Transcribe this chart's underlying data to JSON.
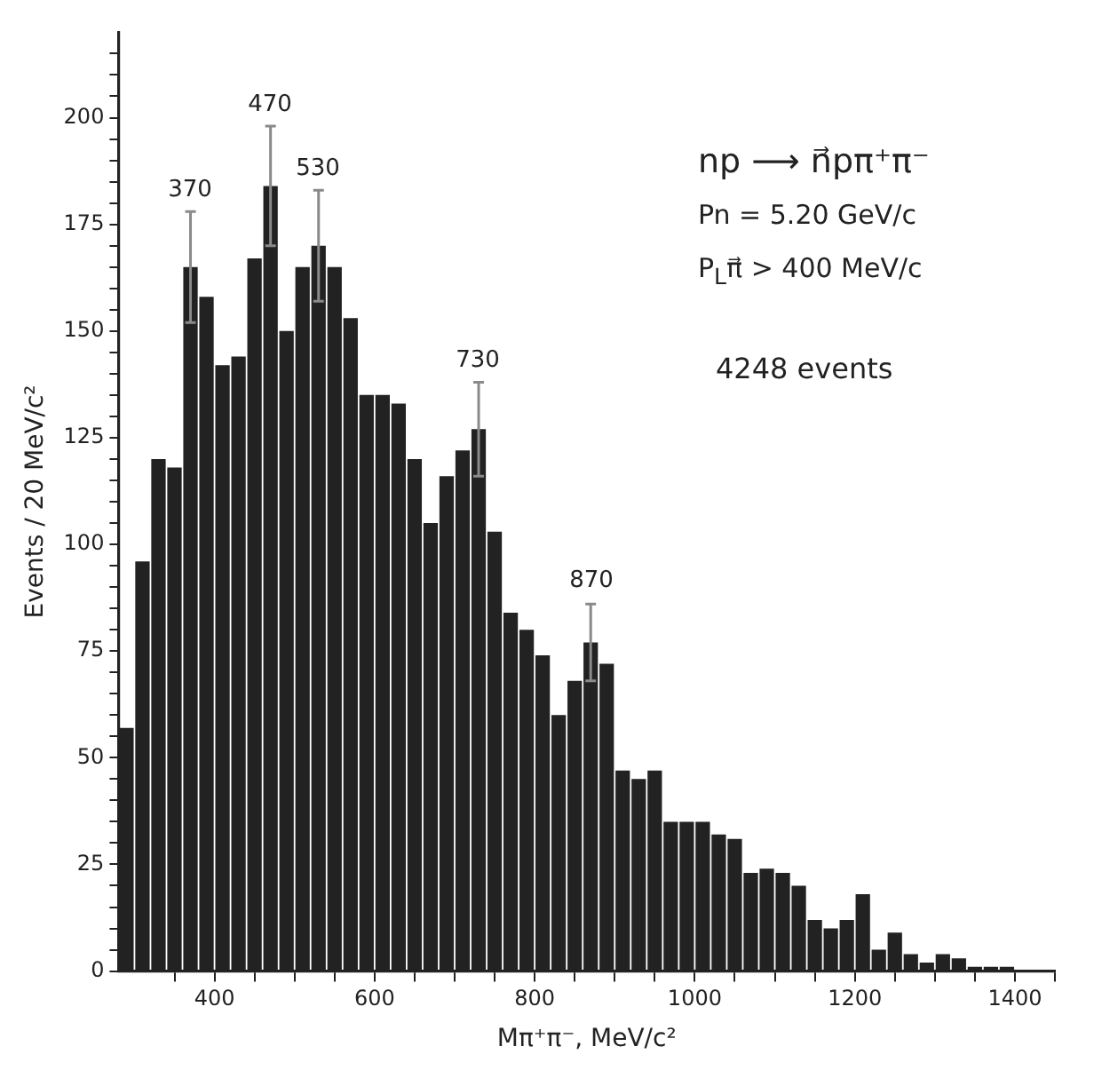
{
  "chart_data": {
    "type": "histogram",
    "xlabel": "Mπ⁺π⁻, MeV/c²",
    "ylabel": "Events / 20 MeV/c²",
    "bins": [
      280,
      300,
      320,
      340,
      360,
      380,
      400,
      420,
      440,
      460,
      480,
      500,
      520,
      540,
      560,
      580,
      600,
      620,
      640,
      660,
      680,
      700,
      720,
      740,
      760,
      780,
      800,
      820,
      840,
      860,
      880,
      900,
      920,
      940,
      960,
      980,
      1000,
      1020,
      1040,
      1060,
      1080,
      1100,
      1120,
      1140,
      1160,
      1180,
      1200,
      1220,
      1240,
      1260,
      1280,
      1300,
      1320,
      1340,
      1360,
      1380,
      1400
    ],
    "values": [
      57,
      96,
      120,
      118,
      165,
      158,
      142,
      144,
      167,
      184,
      150,
      165,
      170,
      165,
      153,
      135,
      135,
      133,
      120,
      105,
      116,
      122,
      127,
      103,
      84,
      80,
      74,
      60,
      68,
      77,
      72,
      47,
      45,
      47,
      35,
      35,
      35,
      32,
      31,
      23,
      24,
      23,
      20,
      12,
      10,
      12,
      18,
      5,
      9,
      4,
      2,
      4,
      3,
      1,
      1,
      1
    ],
    "errors": [
      null,
      null,
      null,
      null,
      13,
      null,
      null,
      null,
      null,
      14,
      null,
      null,
      13,
      null,
      null,
      null,
      null,
      null,
      null,
      null,
      null,
      null,
      11,
      null,
      null,
      null,
      null,
      null,
      null,
      9,
      null,
      null,
      null,
      null,
      null,
      null,
      null,
      null,
      null,
      null,
      null,
      null,
      null,
      null,
      null,
      null,
      null,
      null,
      null,
      null,
      null,
      null,
      null,
      null,
      null,
      null
    ],
    "color": "#222222",
    "xlim": [
      280,
      1450
    ],
    "xticks": [
      {
        "value": 350,
        "label": null
      },
      {
        "value": 400,
        "label": "400"
      },
      {
        "value": 450,
        "label": null
      },
      {
        "value": 500,
        "label": null
      },
      {
        "value": 550,
        "label": null
      },
      {
        "value": 600,
        "label": "600"
      },
      {
        "value": 650,
        "label": null
      },
      {
        "value": 700,
        "label": null
      },
      {
        "value": 750,
        "label": null
      },
      {
        "value": 800,
        "label": "800"
      },
      {
        "value": 850,
        "label": null
      },
      {
        "value": 900,
        "label": null
      },
      {
        "value": 950,
        "label": null
      },
      {
        "value": 1000,
        "label": "1000"
      },
      {
        "value": 1050,
        "label": null
      },
      {
        "value": 1100,
        "label": null
      },
      {
        "value": 1150,
        "label": null
      },
      {
        "value": 1200,
        "label": "1200"
      },
      {
        "value": 1250,
        "label": null
      },
      {
        "value": 1300,
        "label": null
      },
      {
        "value": 1350,
        "label": null
      },
      {
        "value": 1400,
        "label": "1400"
      },
      {
        "value": 1450,
        "label": null
      }
    ],
    "ylim": [
      0,
      220
    ],
    "yticks": [
      0,
      {
        "value": 5,
        "label": null
      },
      {
        "value": 10,
        "label": null
      },
      {
        "value": 15,
        "label": null
      },
      {
        "value": 20,
        "label": null
      },
      25,
      {
        "value": 30,
        "label": null
      },
      {
        "value": 35,
        "label": null
      },
      {
        "value": 40,
        "label": null
      },
      {
        "value": 45,
        "label": null
      },
      50,
      {
        "value": 55,
        "label": null
      },
      {
        "value": 60,
        "label": null
      },
      {
        "value": 65,
        "label": null
      },
      {
        "value": 70,
        "label": null
      },
      75,
      {
        "value": 80,
        "label": null
      },
      {
        "value": 85,
        "label": null
      },
      {
        "value": 90,
        "label": null
      },
      {
        "value": 95,
        "label": null
      },
      100,
      {
        "value": 105,
        "label": null
      },
      {
        "value": 110,
        "label": null
      },
      {
        "value": 115,
        "label": null
      },
      {
        "value": 120,
        "label": null
      },
      125,
      {
        "value": 130,
        "label": null
      },
      {
        "value": 135,
        "label": null
      },
      {
        "value": 140,
        "label": null
      },
      {
        "value": 145,
        "label": null
      },
      150,
      {
        "value": 155,
        "label": null
      },
      {
        "value": 160,
        "label": null
      },
      {
        "value": 165,
        "label": null
      },
      {
        "value": 170,
        "label": null
      },
      175,
      {
        "value": 180,
        "label": null
      },
      {
        "value": 185,
        "label": null
      },
      {
        "value": 190,
        "label": null
      },
      {
        "value": 195,
        "label": null
      },
      200,
      {
        "value": 205,
        "label": null
      },
      {
        "value": 210,
        "label": null
      },
      {
        "value": 215,
        "label": null
      }
    ],
    "annotations": [
      "370",
      "470",
      "530",
      "730",
      "870",
      "np ⟶ n⃗pπ⁺π⁻",
      "Pn = 5.20 GeV/c",
      "P$_{L}$π⃗ > 400 MeV/c",
      "4248 events"
    ]
  }
}
